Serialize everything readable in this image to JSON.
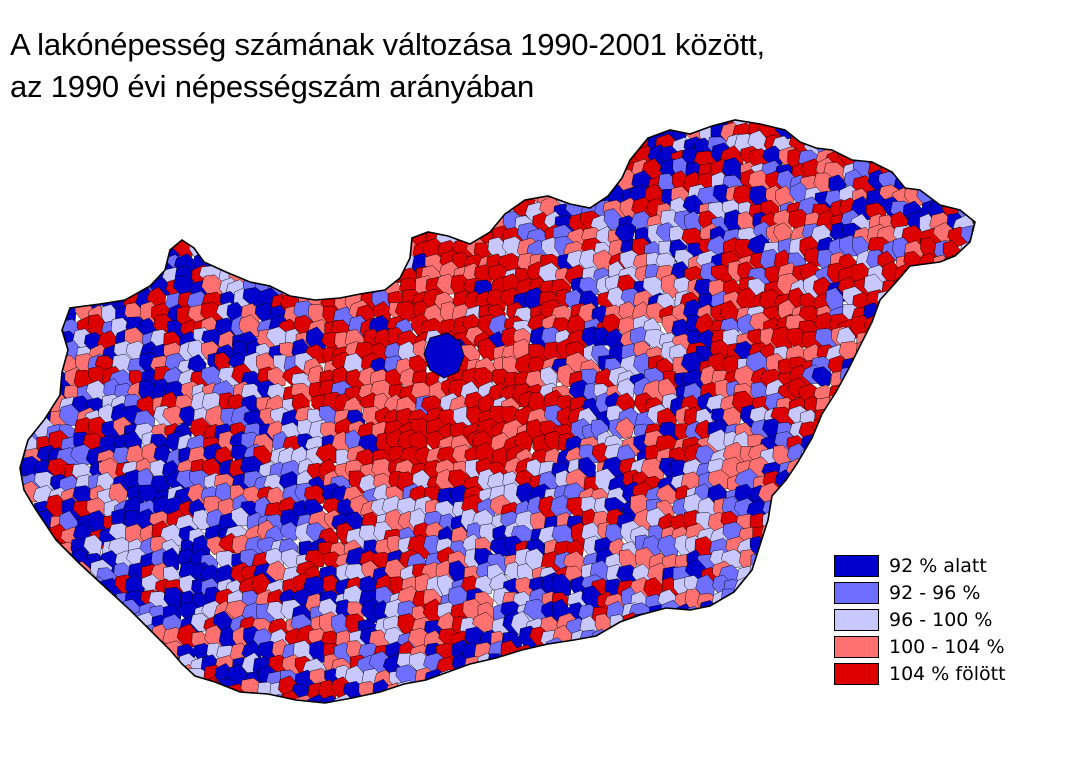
{
  "title": {
    "line1": "A lakónépesség számának változása 1990-2001 között,",
    "line2": "az 1990 évi népességszám arányában"
  },
  "legend": {
    "items": [
      {
        "label": "92 % alatt",
        "color": "#0000cc"
      },
      {
        "label": "92 - 96 %",
        "color": "#6e6eff"
      },
      {
        "label": "96 - 100 %",
        "color": "#c8c8ff"
      },
      {
        "label": "100 - 104 %",
        "color": "#ff7070"
      },
      {
        "label": "104 % fölött",
        "color": "#dd0000"
      }
    ]
  },
  "map": {
    "region": "Hungary",
    "unit": "settlements",
    "outline_color": "#000000",
    "capital_color": "#0000cc"
  }
}
